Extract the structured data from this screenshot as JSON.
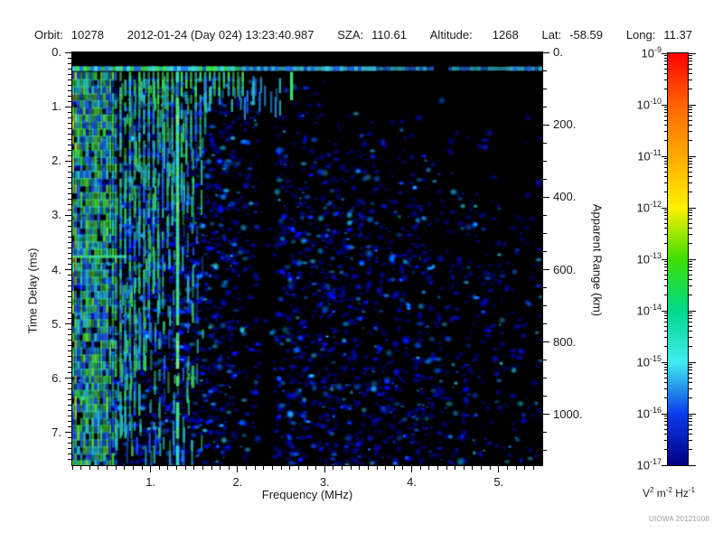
{
  "header": {
    "fields": [
      {
        "key": "orbit",
        "label": "Orbit:",
        "value": "10278"
      },
      {
        "key": "datetime",
        "label": "",
        "value": "2012-01-24 (Day 024) 13:23:40.987"
      },
      {
        "key": "sza",
        "label": "SZA:",
        "value": "110.61"
      },
      {
        "key": "altitude",
        "label": "Altitude:",
        "value": "1268",
        "wide": true
      },
      {
        "key": "lat",
        "label": "Lat:",
        "value": "-58.59"
      },
      {
        "key": "long",
        "label": "Long:",
        "value": "11.37"
      }
    ]
  },
  "chart_data": {
    "type": "heatmap",
    "description": "Radar sounder spectrogram (ionospheric sounding): received spectral density vs frequency and time delay",
    "xlabel": "Frequency (MHz)",
    "ylabel_left": "Time Delay (ms)",
    "ylabel_right": "Apparent Range (km)",
    "xlim_mhz": [
      0.1,
      5.5
    ],
    "ylim_ms": [
      0.0,
      7.6
    ],
    "x_major_ticks": [
      1,
      2,
      3,
      4,
      5
    ],
    "x_major_labels": [
      "1.",
      "2.",
      "3.",
      "4.",
      "5."
    ],
    "x_minor_step": 0.1,
    "y_major_ticks": [
      0,
      1,
      2,
      3,
      4,
      5,
      6,
      7
    ],
    "y_major_labels": [
      "0.",
      "1.",
      "2.",
      "3.",
      "4.",
      "5.",
      "6.",
      "7."
    ],
    "y_minor_step": 0.1,
    "right_axis": {
      "ticks_km": [
        0,
        200,
        400,
        600,
        800,
        1000
      ],
      "labels": [
        "0.",
        "200.",
        "400.",
        "600.",
        "800.",
        "1000."
      ],
      "minor_step_km": 50,
      "km_per_ms": 150
    },
    "colorbar": {
      "scale": "log10",
      "exponents": [
        -9,
        -10,
        -11,
        -12,
        -13,
        -14,
        -15,
        -16,
        -17
      ],
      "unit_parts": [
        {
          "base": "V",
          "exp": "2"
        },
        {
          "base": "m",
          "exp": "-2"
        },
        {
          "base": "Hz",
          "exp": "-1"
        }
      ],
      "gradient": [
        "#ff0000",
        "#ff6400",
        "#ffaa00",
        "#fff000",
        "#3ce000",
        "#00d88c",
        "#40ecf0",
        "#0a3cec",
        "#000080"
      ]
    },
    "features": {
      "surface_echo": {
        "delay_ms": 0.3,
        "gap_mhz": [
          4.25,
          4.38
        ]
      },
      "plasma_harmonic_band_mhz": [
        0.1,
        1.55
      ],
      "harmonic_comb_mhz": [
        0.65,
        2.05
      ],
      "resonance_line_mhz": 1.31,
      "dark_column_mhz": [
        2.26,
        2.42
      ],
      "green_dash": {
        "mhz": 2.62,
        "delay_ms": [
          0.36,
          0.88
        ]
      },
      "low_freq_horizontal_line": {
        "delay_ms": 3.76,
        "mhz": [
          0.1,
          0.8
        ]
      },
      "noise_floor": "diffuse blue speckle, dense at low frequency and late delay, sparse at upper right"
    },
    "noise_seed": 1234567
  },
  "footer": {
    "credit": "UIOWA 20121008"
  }
}
